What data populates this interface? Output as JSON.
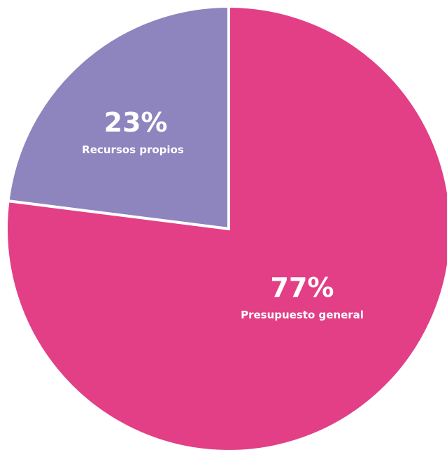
{
  "chart_data": {
    "type": "pie",
    "slices": [
      {
        "label": "Recursos propios",
        "value": 23,
        "value_label": "23%",
        "color": "#8E84BE"
      },
      {
        "label": "Presupuesto general",
        "value": 77,
        "value_label": "77%",
        "color": "#E23F86"
      }
    ],
    "start_angle_deg": 0,
    "direction": "counterclockwise",
    "separator_color": "#ffffff",
    "legend": "none"
  }
}
